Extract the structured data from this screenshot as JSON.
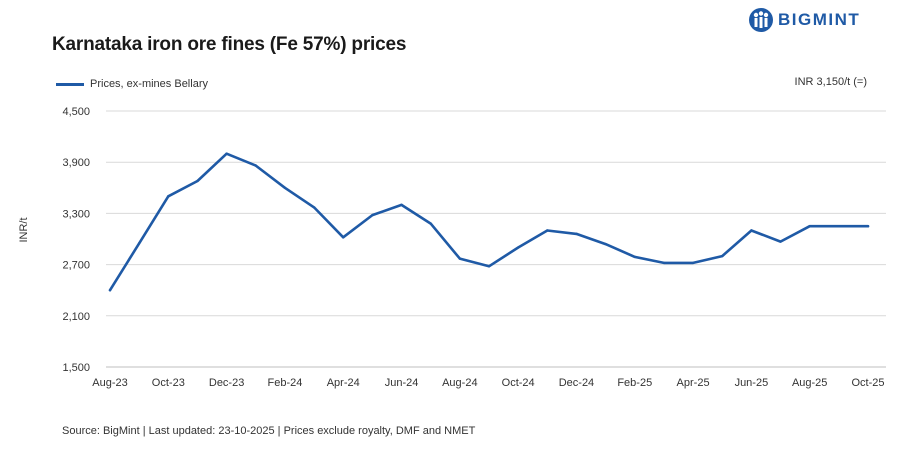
{
  "header": {
    "title": "Karnataka iron ore fines (Fe 57%) prices",
    "brand": "BIGMINT",
    "note": "INR 3,150/t (=)"
  },
  "footer": {
    "source": "Source: BigMint | Last updated: 23-10-2025 | Prices exclude royalty, DMF and NMET"
  },
  "colors": {
    "line": "#1f5aa6",
    "grid": "#d9d9d9",
    "brand": "#1f5aa6"
  },
  "chart_data": {
    "type": "line",
    "title": "Karnataka iron ore fines (Fe 57%) prices",
    "ylabel": "INR/t",
    "xlabel": "",
    "ylim": [
      1500,
      4500
    ],
    "yticks": [
      "1,500",
      "2,100",
      "2,700",
      "3,300",
      "3,900",
      "4,500"
    ],
    "ytick_values": [
      1500,
      2100,
      2700,
      3300,
      3900,
      4500
    ],
    "xtick_labels": [
      "Aug-23",
      "Oct-23",
      "Dec-23",
      "Feb-24",
      "Apr-24",
      "Jun-24",
      "Aug-24",
      "Oct-24",
      "Dec-24",
      "Feb-25",
      "Apr-25",
      "Jun-25",
      "Aug-25",
      "Oct-25"
    ],
    "grid": true,
    "legend_position": "top-left",
    "series": [
      {
        "name": "Prices, ex-mines Bellary",
        "x": [
          "Aug-23",
          "Sep-23",
          "Oct-23",
          "Nov-23",
          "Dec-23",
          "Jan-24",
          "Feb-24",
          "Mar-24",
          "Apr-24",
          "May-24",
          "Jun-24",
          "Jul-24",
          "Aug-24",
          "Sep-24",
          "Oct-24",
          "Nov-24",
          "Dec-24",
          "Jan-25",
          "Feb-25",
          "Mar-25",
          "Apr-25",
          "May-25",
          "Jun-25",
          "Jul-25",
          "Aug-25",
          "Sep-25",
          "Oct-25"
        ],
        "values": [
          2400,
          2950,
          3500,
          3680,
          4000,
          3860,
          3600,
          3370,
          3020,
          3280,
          3400,
          3180,
          2770,
          2680,
          2900,
          3100,
          3060,
          2940,
          2790,
          2720,
          2720,
          2800,
          3100,
          2970,
          3150,
          3150,
          3150
        ]
      }
    ]
  }
}
